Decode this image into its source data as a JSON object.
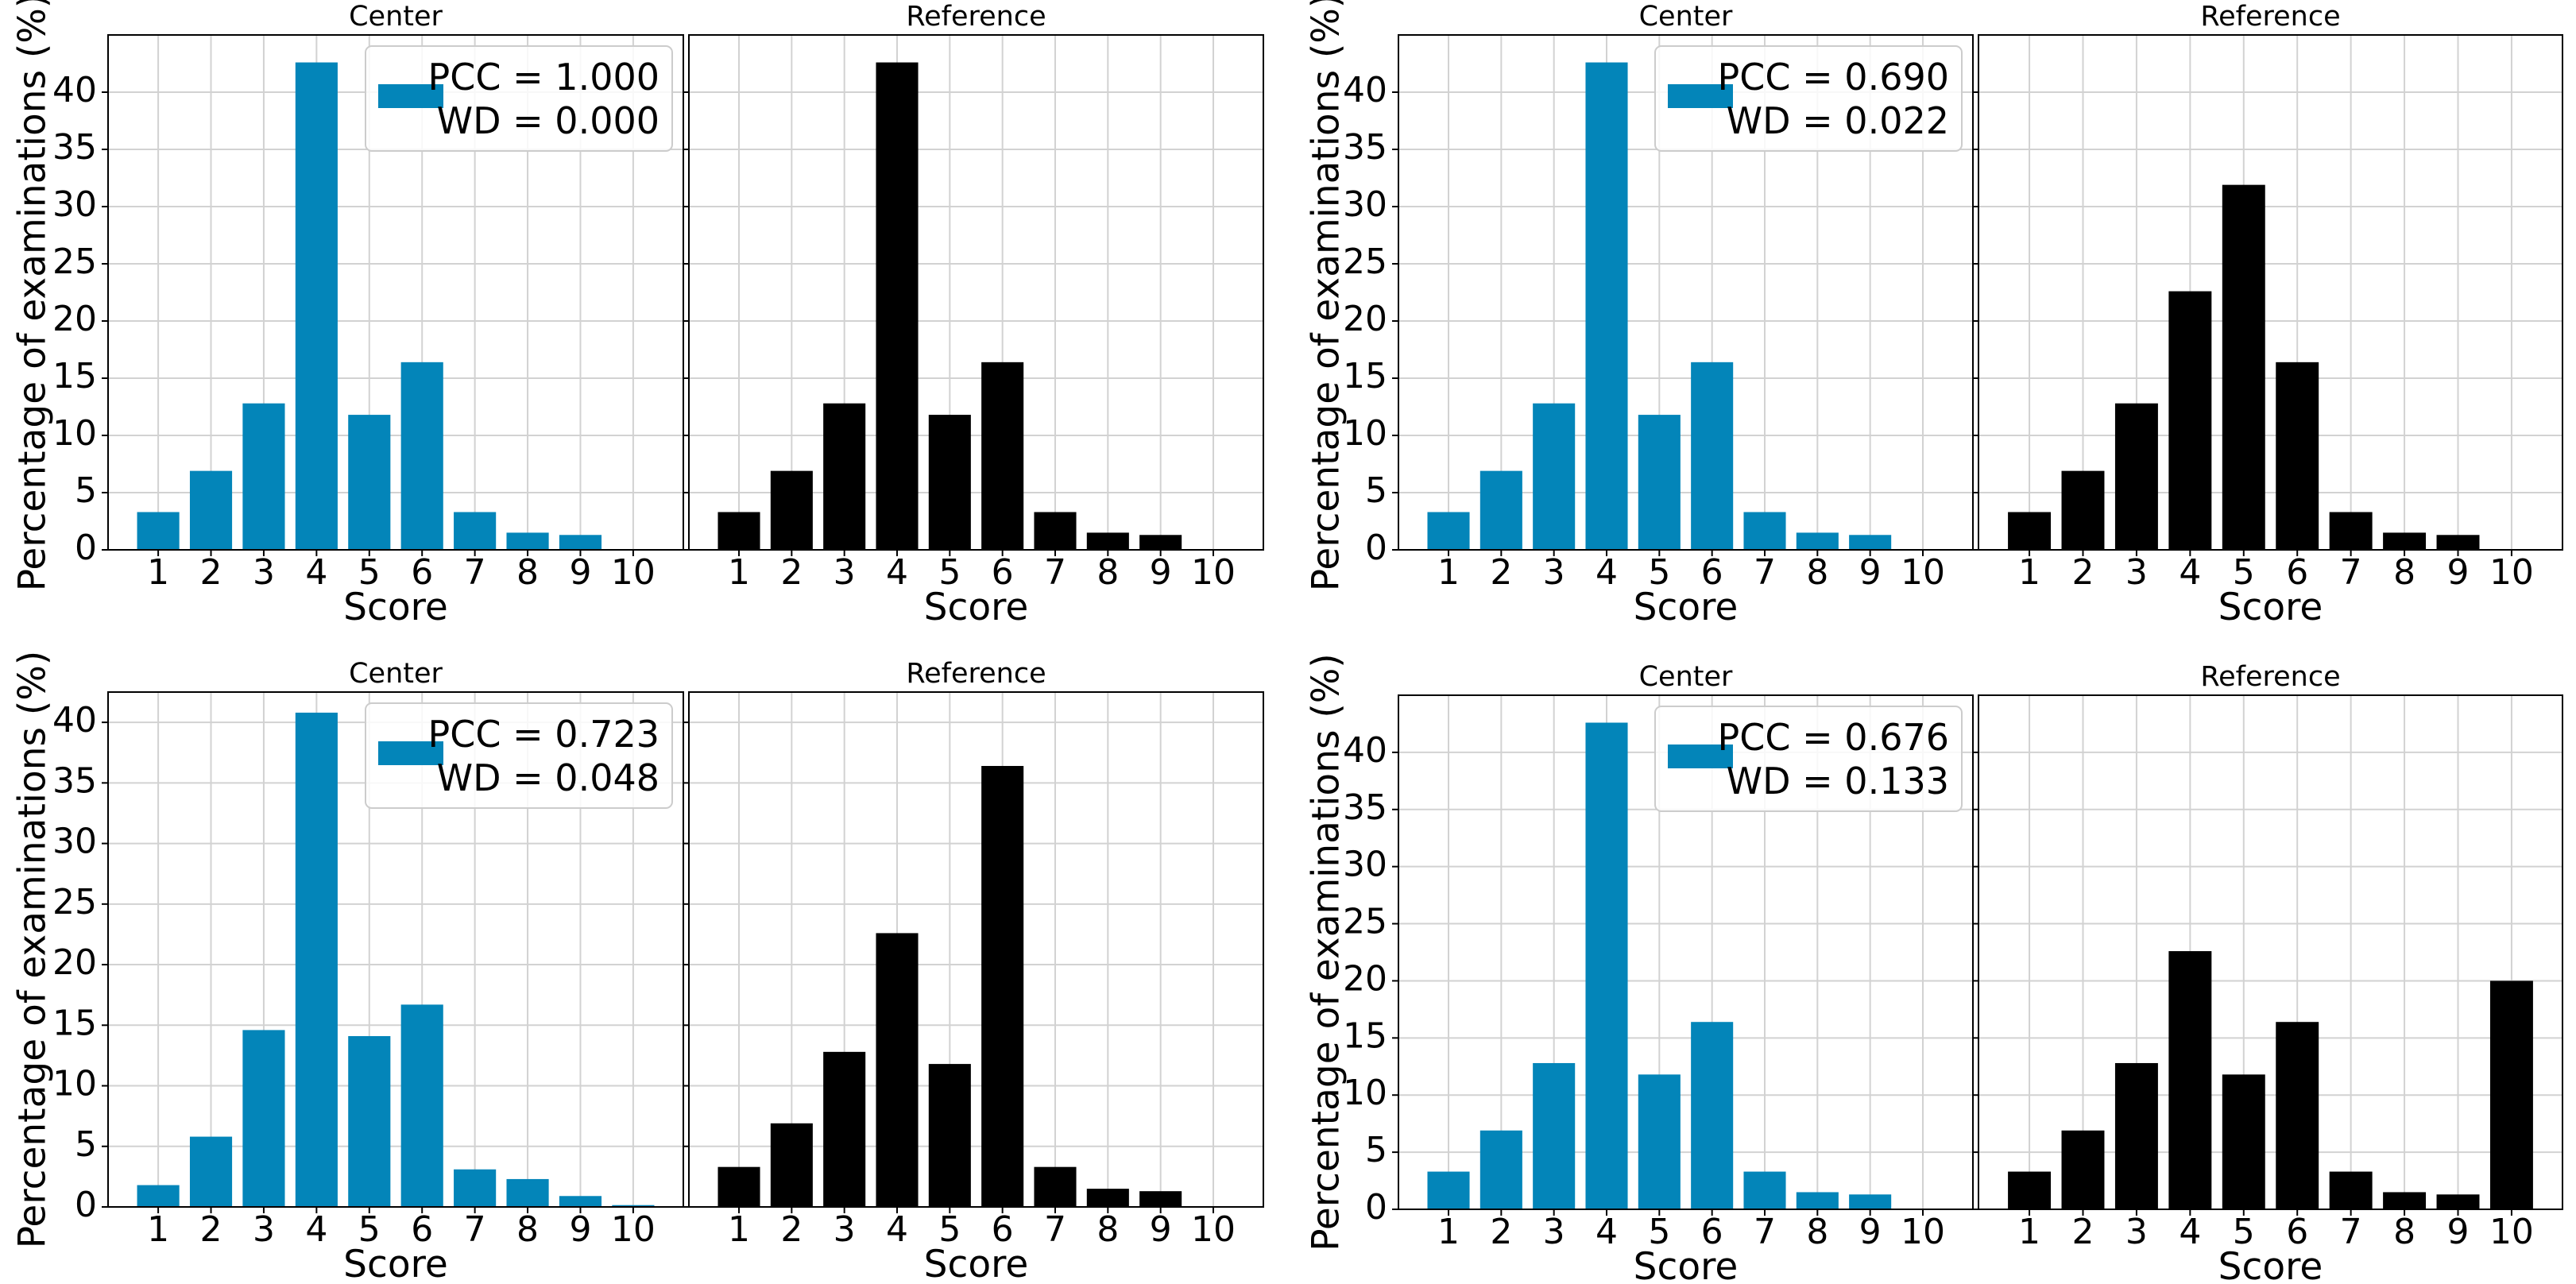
{
  "chart_data": [
    {
      "type": "bar",
      "name": "top-left",
      "ylabel": "Percentage of examinations (%)",
      "xlabel": "Score",
      "categories": [
        "1",
        "2",
        "3",
        "4",
        "5",
        "6",
        "7",
        "8",
        "9",
        "10"
      ],
      "ylim": [
        0,
        45
      ],
      "yticks": [
        "0",
        "5",
        "10",
        "15",
        "20",
        "25",
        "30",
        "35",
        "40"
      ],
      "grid": true,
      "legend": {
        "line1": "PCC = 1.000",
        "line2": "WD = 0.000",
        "placement": "top-right"
      },
      "panels": [
        {
          "title": "Center",
          "color": "#0385B9",
          "values": [
            3.3,
            6.9,
            12.8,
            42.6,
            11.8,
            16.4,
            3.3,
            1.5,
            1.3,
            0
          ]
        },
        {
          "title": "Reference",
          "color": "#000000",
          "values": [
            3.3,
            6.9,
            12.8,
            42.6,
            11.8,
            16.4,
            3.3,
            1.5,
            1.3,
            0
          ]
        }
      ]
    },
    {
      "type": "bar",
      "name": "top-right",
      "ylabel": "Percentage of examinations (%)",
      "xlabel": "Score",
      "categories": [
        "1",
        "2",
        "3",
        "4",
        "5",
        "6",
        "7",
        "8",
        "9",
        "10"
      ],
      "ylim": [
        0,
        45
      ],
      "yticks": [
        "0",
        "5",
        "10",
        "15",
        "20",
        "25",
        "30",
        "35",
        "40"
      ],
      "grid": true,
      "legend": {
        "line1": "PCC = 0.690",
        "line2": "WD = 0.022",
        "placement": "top-right"
      },
      "panels": [
        {
          "title": "Center",
          "color": "#0385B9",
          "values": [
            3.3,
            6.9,
            12.8,
            42.6,
            11.8,
            16.4,
            3.3,
            1.5,
            1.3,
            0
          ]
        },
        {
          "title": "Reference",
          "color": "#000000",
          "values": [
            3.3,
            6.9,
            12.8,
            22.6,
            31.9,
            16.4,
            3.3,
            1.5,
            1.3,
            0
          ]
        }
      ]
    },
    {
      "type": "bar",
      "name": "bottom-left",
      "ylabel": "Percentage of examinations (%)",
      "xlabel": "Score",
      "categories": [
        "1",
        "2",
        "3",
        "4",
        "5",
        "6",
        "7",
        "8",
        "9",
        "10"
      ],
      "ylim": [
        0,
        42.5
      ],
      "yticks": [
        "0",
        "5",
        "10",
        "15",
        "20",
        "25",
        "30",
        "35",
        "40"
      ],
      "grid": true,
      "legend": {
        "line1": "PCC = 0.723",
        "line2": "WD = 0.048",
        "placement": "top-right"
      },
      "panels": [
        {
          "title": "Center",
          "color": "#0385B9",
          "values": [
            1.8,
            5.8,
            14.6,
            40.8,
            14.1,
            16.7,
            3.1,
            2.3,
            0.9,
            0.15
          ]
        },
        {
          "title": "Reference",
          "color": "#000000",
          "values": [
            3.3,
            6.9,
            12.8,
            22.6,
            11.8,
            36.4,
            3.3,
            1.5,
            1.3,
            0
          ]
        }
      ]
    },
    {
      "type": "bar",
      "name": "bottom-right",
      "ylabel": "Percentage of examinations (%)",
      "xlabel": "Score",
      "categories": [
        "1",
        "2",
        "3",
        "4",
        "5",
        "6",
        "7",
        "8",
        "9",
        "10"
      ],
      "ylim": [
        0,
        45
      ],
      "yticks": [
        "0",
        "5",
        "10",
        "15",
        "20",
        "25",
        "30",
        "35",
        "40"
      ],
      "grid": true,
      "legend": {
        "line1": "PCC = 0.676",
        "line2": "WD = 0.133",
        "placement": "top-right"
      },
      "panels": [
        {
          "title": "Center",
          "color": "#0385B9",
          "values": [
            3.3,
            6.9,
            12.8,
            42.6,
            11.8,
            16.4,
            3.3,
            1.5,
            1.3,
            0
          ]
        },
        {
          "title": "Reference",
          "color": "#000000",
          "values": [
            3.3,
            6.9,
            12.8,
            22.6,
            11.8,
            16.4,
            3.3,
            1.5,
            1.3,
            20.0
          ]
        }
      ]
    }
  ]
}
